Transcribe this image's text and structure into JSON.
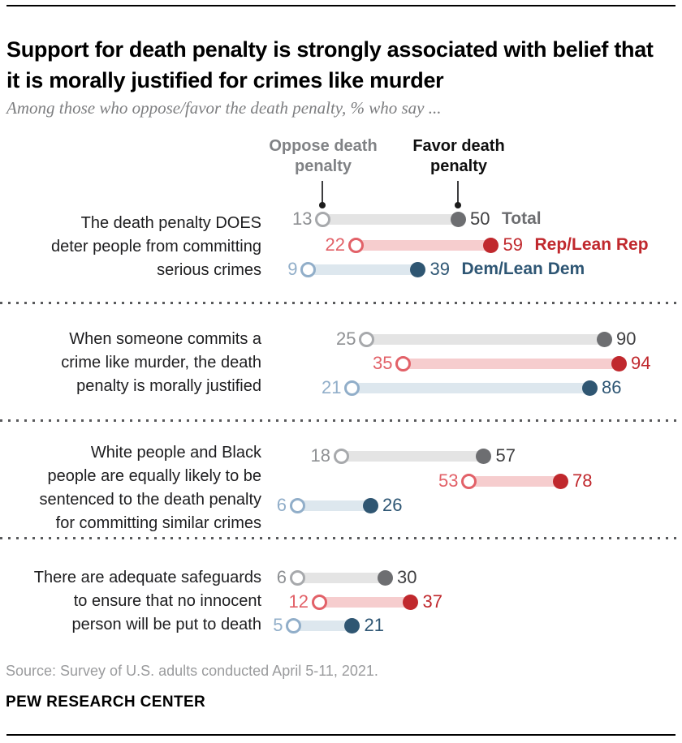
{
  "header": {
    "title": "Support for death penalty is strongly associated with belief that it is morally justified for crimes like murder",
    "subtitle": "Among those who oppose/favor the death penalty, % who say ..."
  },
  "chart_data": {
    "type": "dumbbell",
    "unit": "%",
    "xlim": [
      0,
      100
    ],
    "legend": {
      "oppose": "Oppose death penalty",
      "favor": "Favor death penalty"
    },
    "series_labels": [
      "Total",
      "Rep/Lean Rep",
      "Dem/Lean Dem"
    ],
    "groups": [
      {
        "statement": "The death penalty DOES deter people from committing serious crimes",
        "statement_lines": [
          "The death penalty DOES",
          "deter people from committing",
          "serious crimes"
        ],
        "rows": [
          {
            "series": "Total",
            "oppose": 13,
            "favor": 50
          },
          {
            "series": "Rep/Lean Rep",
            "oppose": 22,
            "favor": 59
          },
          {
            "series": "Dem/Lean Dem",
            "oppose": 9,
            "favor": 39
          }
        ]
      },
      {
        "statement": "When someone commits a crime like murder, the death penalty is morally justified",
        "statement_lines": [
          "When someone commits a",
          "crime like murder, the death",
          "penalty is morally justified"
        ],
        "rows": [
          {
            "series": "Total",
            "oppose": 25,
            "favor": 90
          },
          {
            "series": "Rep/Lean Rep",
            "oppose": 35,
            "favor": 94
          },
          {
            "series": "Dem/Lean Dem",
            "oppose": 21,
            "favor": 86
          }
        ]
      },
      {
        "statement": "White people and Black people are equally likely to be sentenced to the death penalty for committing similar crimes",
        "statement_lines": [
          "White people and Black",
          "people are equally likely to be",
          "sentenced to the death penalty",
          "for committing similar crimes"
        ],
        "rows": [
          {
            "series": "Total",
            "oppose": 18,
            "favor": 57
          },
          {
            "series": "Rep/Lean Rep",
            "oppose": 53,
            "favor": 78
          },
          {
            "series": "Dem/Lean Dem",
            "oppose": 6,
            "favor": 26
          }
        ]
      },
      {
        "statement": "There are adequate safeguards to ensure that no innocent person will be put to death",
        "statement_lines": [
          "There are adequate safeguards",
          "to ensure that no innocent",
          "person will be put to death"
        ],
        "rows": [
          {
            "series": "Total",
            "oppose": 6,
            "favor": 30
          },
          {
            "series": "Rep/Lean Rep",
            "oppose": 12,
            "favor": 37
          },
          {
            "series": "Dem/Lean Dem",
            "oppose": 5,
            "favor": 21
          }
        ]
      }
    ],
    "colors": {
      "total": {
        "bar": "#e4e4e4",
        "open_stroke": "#a7a9ac",
        "dot": "#6d6e71",
        "oppose_num": "#8e9093",
        "favor_num": "#404042",
        "label": "#6d6e71"
      },
      "rep": {
        "bar": "#f6cdce",
        "open_stroke": "#e26168",
        "dot": "#c0282d",
        "oppose_num": "#e26168",
        "favor_num": "#c0282d",
        "label": "#c0282d"
      },
      "dem": {
        "bar": "#dde7ee",
        "open_stroke": "#91aec9",
        "dot": "#2f5672",
        "oppose_num": "#91aec9",
        "favor_num": "#2e5674",
        "label": "#2e5674"
      }
    }
  },
  "footer": {
    "source": "Source: Survey of U.S. adults conducted April 5-11, 2021.",
    "brand": "PEW RESEARCH CENTER"
  }
}
